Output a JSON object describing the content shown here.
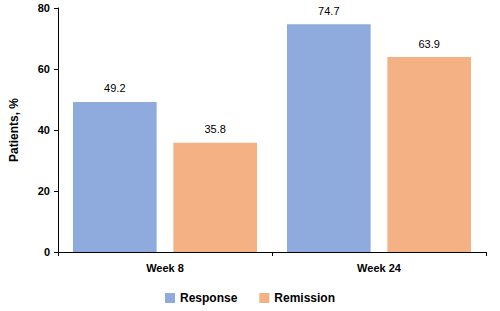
{
  "chart_data": {
    "type": "bar",
    "y_label": "Patients, %",
    "categories": [
      "Week 8",
      "Week 24"
    ],
    "series": [
      {
        "name": "Response",
        "color": "#8faadc",
        "values": [
          49.2,
          74.7
        ]
      },
      {
        "name": "Remission",
        "color": "#f4b183",
        "values": [
          35.8,
          63.9
        ]
      }
    ],
    "ylim": [
      0,
      80
    ],
    "yticks": [
      0,
      20,
      40,
      60,
      80
    ],
    "grid": false,
    "legend": "bottom",
    "data_labels": true
  }
}
